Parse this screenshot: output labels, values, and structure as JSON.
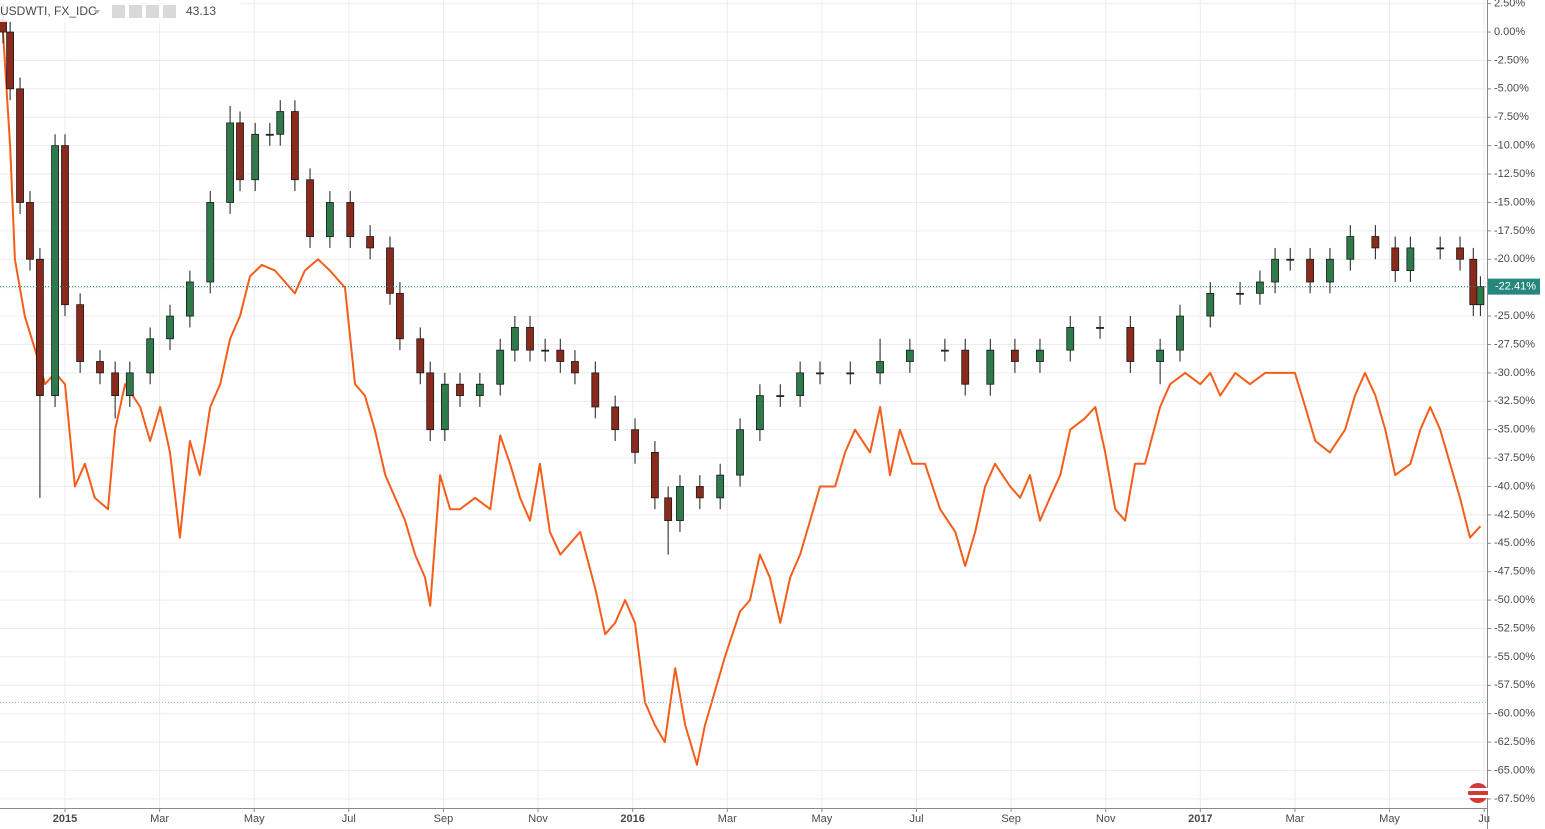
{
  "chart_data": {
    "type": "candlestick",
    "title": "USDWTI, FX_IDC",
    "last_price": 43.13,
    "last_price_color": "#f55d1a",
    "xlim": [
      -1.374,
      30.06
    ],
    "ylim": [
      -68.3,
      2.82
    ],
    "grid": true,
    "xticks": [
      {
        "value": 0,
        "label": "2015"
      },
      {
        "value": 2,
        "label": "Mar"
      },
      {
        "value": 4,
        "label": "May"
      },
      {
        "value": 6,
        "label": "Jul"
      },
      {
        "value": 8,
        "label": "Sep"
      },
      {
        "value": 10,
        "label": "Nov"
      },
      {
        "value": 12,
        "label": "2016"
      },
      {
        "value": 14,
        "label": "Mar"
      },
      {
        "value": 16,
        "label": "May"
      },
      {
        "value": 18,
        "label": "Jul"
      },
      {
        "value": 20,
        "label": "Sep"
      },
      {
        "value": 22,
        "label": "Nov"
      },
      {
        "value": 24,
        "label": "2017"
      },
      {
        "value": 26,
        "label": "Mar"
      },
      {
        "value": 28,
        "label": "May"
      },
      {
        "value": 30,
        "label": "Ju"
      }
    ],
    "yticks": [
      {
        "value": 2.5,
        "label": "2.50%"
      },
      {
        "value": 0,
        "label": "0.00%"
      },
      {
        "value": -2.5,
        "label": "-2.50%"
      },
      {
        "value": -5,
        "label": "-5.00%"
      },
      {
        "value": -7.5,
        "label": "-7.50%"
      },
      {
        "value": -10,
        "label": "-10.00%"
      },
      {
        "value": -12.5,
        "label": "-12.50%"
      },
      {
        "value": -15,
        "label": "-15.00%"
      },
      {
        "value": -17.5,
        "label": "-17.50%"
      },
      {
        "value": -20,
        "label": "-20.00%"
      },
      {
        "value": -22.5,
        "label": "-22.50%"
      },
      {
        "value": -25,
        "label": "-25.00%"
      },
      {
        "value": -27.5,
        "label": "-27.50%"
      },
      {
        "value": -30,
        "label": "-30.00%"
      },
      {
        "value": -32.5,
        "label": "-32.50%"
      },
      {
        "value": -35,
        "label": "-35.00%"
      },
      {
        "value": -37.5,
        "label": "-37.50%"
      },
      {
        "value": -40,
        "label": "-40.00%"
      },
      {
        "value": -42.5,
        "label": "-42.50%"
      },
      {
        "value": -45,
        "label": "-45.00%"
      },
      {
        "value": -47.5,
        "label": "-47.50%"
      },
      {
        "value": -50,
        "label": "-50.00%"
      },
      {
        "value": -52.5,
        "label": "-52.50%"
      },
      {
        "value": -55,
        "label": "-55.00%"
      },
      {
        "value": -57.5,
        "label": "-57.50%"
      },
      {
        "value": -60,
        "label": "-60.00%"
      },
      {
        "value": -62.5,
        "label": "-62.50%"
      },
      {
        "value": -65,
        "label": "-65.00%"
      },
      {
        "value": -67.5,
        "label": "-67.50%"
      }
    ],
    "price_line": {
      "value": -22.41,
      "label": "-22.41%",
      "color": "#26887d"
    },
    "alert_line": {
      "value": -59,
      "color": "#7fb9d6"
    },
    "series": [
      {
        "name": "USDWTI, FX_IDC",
        "up_color": "#2f7a4a",
        "down_color": "#8a2a1c",
        "outline": "#1a1a1a",
        "x": [
          -1.31,
          -1.16,
          -0.95,
          -0.74,
          -0.53,
          -0.21,
          0,
          0.32,
          0.74,
          1.06,
          1.37,
          1.8,
          2.22,
          2.64,
          3.07,
          3.49,
          3.7,
          4.02,
          4.33,
          4.55,
          4.86,
          5.18,
          5.6,
          6.03,
          6.45,
          6.87,
          7.08,
          7.51,
          7.72,
          8.03,
          8.35,
          8.77,
          9.2,
          9.51,
          9.83,
          10.15,
          10.47,
          10.78,
          11.21,
          11.63,
          12.05,
          12.47,
          12.75,
          13.0,
          13.42,
          13.85,
          14.27,
          14.69,
          15.12,
          15.54,
          15.96,
          16.6,
          17.23,
          17.86,
          18.6,
          19.03,
          19.56,
          20.08,
          20.61,
          21.25,
          21.88,
          22.52,
          23.15,
          23.57,
          24.21,
          24.84,
          25.26,
          25.58,
          25.9,
          26.32,
          26.74,
          27.17,
          27.7,
          28.12,
          28.44,
          29.07,
          29.49,
          29.77,
          29.92
        ],
        "open": [
          1,
          0,
          -5,
          -15,
          -20,
          -32,
          -10,
          -24,
          -29,
          -30,
          -32,
          -30,
          -27,
          -25,
          -22,
          -15,
          -8,
          -13,
          -9,
          -9,
          -7,
          -13,
          -18,
          -15,
          -18,
          -19,
          -23,
          -27,
          -30,
          -35,
          -31,
          -32,
          -31,
          -28,
          -26,
          -28,
          -28,
          -29,
          -30,
          -33,
          -35,
          -37,
          -41,
          -43,
          -40,
          -41,
          -39,
          -35,
          -32,
          -32,
          -30,
          -30,
          -30,
          -29,
          -28,
          -28,
          -31,
          -28,
          -29,
          -28,
          -26,
          -26,
          -29,
          -28,
          -25,
          -23,
          -23,
          -22,
          -20,
          -20,
          -22,
          -20,
          -18,
          -19,
          -21,
          -19,
          -19,
          -20,
          -24
        ],
        "high": [
          2.5,
          1,
          -4,
          -14,
          -19,
          -9,
          -9,
          -23,
          -28,
          -29,
          -29,
          -26,
          -24,
          -21,
          -14,
          -6.5,
          -7,
          -8,
          -8,
          -6,
          -6,
          -12,
          -14,
          -14,
          -17,
          -18,
          -22,
          -26,
          -29,
          -30,
          -30,
          -30,
          -27,
          -25,
          -25,
          -27,
          -27,
          -28,
          -29,
          -32,
          -34,
          -36,
          -40,
          -39,
          -39,
          -38,
          -34,
          -31,
          -31,
          -29,
          -29,
          -29,
          -27,
          -27,
          -27,
          -27,
          -27,
          -27,
          -27,
          -25,
          -25,
          -25,
          -27,
          -24,
          -22,
          -22,
          -21,
          -19,
          -19,
          -19,
          -19,
          -17,
          -17,
          -18,
          -18,
          -18,
          -18,
          -19,
          -21.5
        ],
        "low": [
          -1,
          -6,
          -16,
          -21,
          -41,
          -33,
          -25,
          -30,
          -31,
          -34,
          -33,
          -31,
          -28,
          -26,
          -23,
          -16,
          -14,
          -14,
          -10,
          -10,
          -14,
          -19,
          -19,
          -19,
          -20,
          -24,
          -28,
          -31,
          -36,
          -36,
          -33,
          -33,
          -32,
          -29,
          -29,
          -29,
          -30,
          -31,
          -34,
          -36,
          -38,
          -42,
          -46,
          -44,
          -42,
          -42,
          -40,
          -36,
          -33,
          -33,
          -31,
          -31,
          -31,
          -30,
          -29,
          -32,
          -32,
          -30,
          -30,
          -29,
          -27,
          -30,
          -31,
          -29,
          -26,
          -24,
          -24,
          -23,
          -21,
          -23,
          -23,
          -21,
          -20,
          -22,
          -22,
          -20,
          -21,
          -25,
          -25
        ],
        "close": [
          0,
          -5,
          -15,
          -20,
          -32,
          -10,
          -24,
          -29,
          -30,
          -32,
          -30,
          -27,
          -25,
          -22,
          -15,
          -8,
          -13,
          -9,
          -9,
          -7,
          -13,
          -18,
          -15,
          -18,
          -19,
          -23,
          -27,
          -30,
          -35,
          -31,
          -32,
          -31,
          -28,
          -26,
          -28,
          -28,
          -29,
          -30,
          -33,
          -35,
          -37,
          -41,
          -43,
          -40,
          -41,
          -39,
          -35,
          -32,
          -32,
          -30,
          -30,
          -30,
          -29,
          -28,
          -28,
          -31,
          -28,
          -29,
          -28,
          -26,
          -26,
          -29,
          -28,
          -25,
          -23,
          -23,
          -22,
          -20,
          -20,
          -22,
          -20,
          -18,
          -19,
          -21,
          -19,
          -19,
          -20,
          -24,
          -22.41
        ]
      }
    ],
    "overlay": {
      "type": "line",
      "color": "#f55d1a",
      "x": [
        -1.31,
        -1.16,
        -1.06,
        -0.85,
        -0.63,
        -0.42,
        -0.21,
        0,
        0.21,
        0.42,
        0.63,
        0.91,
        1.06,
        1.27,
        1.59,
        1.8,
        2.01,
        2.22,
        2.43,
        2.64,
        2.85,
        3.07,
        3.28,
        3.49,
        3.7,
        3.91,
        4.16,
        4.44,
        4.65,
        4.86,
        5.07,
        5.35,
        5.6,
        5.92,
        6.13,
        6.34,
        6.55,
        6.77,
        6.98,
        7.19,
        7.4,
        7.61,
        7.72,
        7.93,
        8.14,
        8.35,
        8.67,
        8.99,
        9.2,
        9.41,
        9.62,
        9.83,
        10.04,
        10.25,
        10.47,
        10.68,
        10.89,
        11.21,
        11.42,
        11.63,
        11.84,
        12.05,
        12.26,
        12.47,
        12.68,
        12.9,
        13.11,
        13.36,
        13.53,
        13.74,
        13.95,
        14.27,
        14.48,
        14.69,
        14.9,
        15.12,
        15.33,
        15.54,
        15.75,
        15.96,
        16.28,
        16.49,
        16.7,
        17.02,
        17.23,
        17.44,
        17.65,
        17.91,
        18.18,
        18.5,
        18.82,
        19.03,
        19.24,
        19.45,
        19.66,
        19.98,
        20.19,
        20.4,
        20.61,
        20.82,
        21.04,
        21.25,
        21.56,
        21.78,
        21.99,
        22.2,
        22.41,
        22.62,
        22.83,
        23.15,
        23.36,
        23.68,
        24.0,
        24.21,
        24.42,
        24.74,
        25.05,
        25.37,
        25.69,
        26.0,
        26.22,
        26.43,
        26.74,
        27.06,
        27.27,
        27.48,
        27.7,
        27.91,
        28.12,
        28.44,
        28.65,
        28.86,
        29.07,
        29.28,
        29.49,
        29.7,
        29.92
      ],
      "values": [
        0,
        -10,
        -20,
        -25,
        -28,
        -31,
        -30,
        -31,
        -40,
        -38,
        -41,
        -42,
        -35,
        -31,
        -33,
        -36,
        -33,
        -37,
        -44.5,
        -36,
        -39,
        -33,
        -31,
        -27,
        -25,
        -21.5,
        -20.5,
        -21,
        -22,
        -23,
        -21,
        -20,
        -21,
        -22.5,
        -31,
        -32,
        -35,
        -39,
        -41,
        -43,
        -46,
        -48,
        -50.5,
        -39,
        -42,
        -42,
        -41,
        -42,
        -35.5,
        -38,
        -41,
        -43,
        -38,
        -44,
        -46,
        -45,
        -44,
        -49,
        -53,
        -52,
        -50,
        -52,
        -59,
        -61,
        -62.5,
        -56,
        -61,
        -64.5,
        -61,
        -58,
        -55,
        -51,
        -50,
        -46,
        -48,
        -52,
        -48,
        -46,
        -43,
        -40,
        -40,
        -37,
        -35,
        -37,
        -33,
        -39,
        -35,
        -38,
        -38,
        -42,
        -44,
        -47,
        -44,
        -40,
        -38,
        -40,
        -41,
        -39,
        -43,
        -41,
        -39,
        -35,
        -34,
        -33,
        -37,
        -42,
        -43,
        -38,
        -38,
        -33,
        -31,
        -30,
        -31,
        -30,
        -32,
        -30,
        -31,
        -30,
        -30,
        -30,
        -33,
        -36,
        -37,
        -35,
        -32,
        -30,
        -32,
        -35,
        -39,
        -38,
        -35,
        -33,
        -35,
        -38,
        -41,
        -44.5,
        -43.5
      ]
    }
  }
}
